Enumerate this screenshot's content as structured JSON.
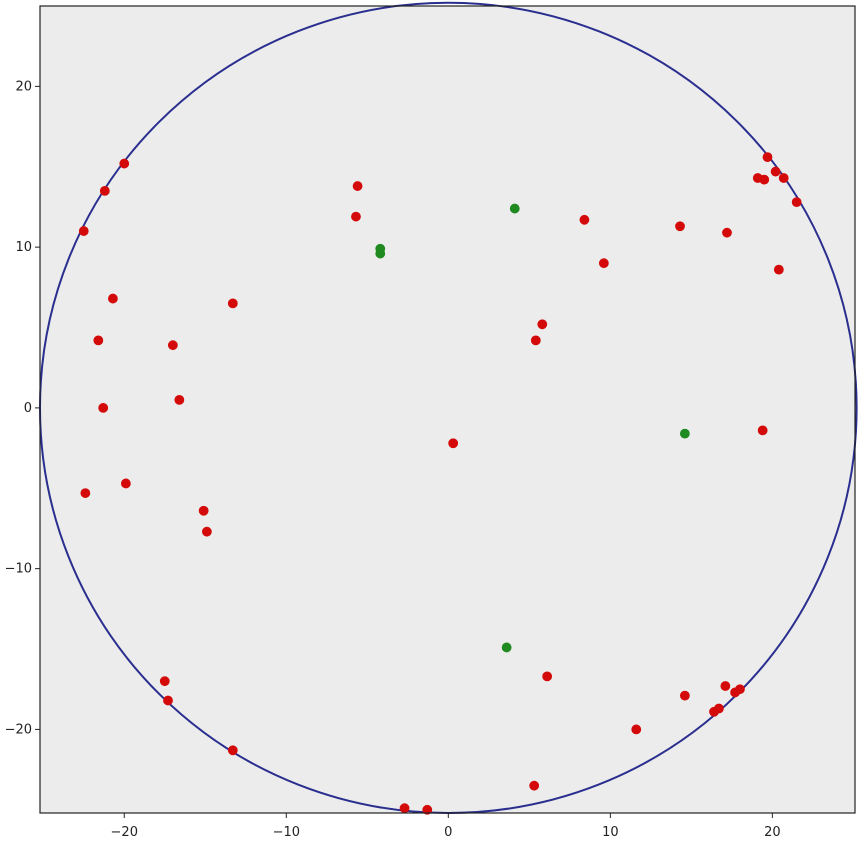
{
  "chart_data": {
    "type": "scatter",
    "title": "",
    "xlabel": "",
    "ylabel": "",
    "xlim": [
      -25.2,
      25.1
    ],
    "ylim": [
      -25.2,
      25.0
    ],
    "x_ticks": [
      -20,
      -10,
      0,
      10,
      20
    ],
    "y_ticks": [
      -20,
      -10,
      0,
      10,
      20
    ],
    "grid": false,
    "background_color": "#ececec",
    "boundary_circle": {
      "center": [
        0,
        0
      ],
      "radius": 25.2,
      "color": "#2a2f8f"
    },
    "series": [
      {
        "color": "#d40a0a",
        "points": [
          [
            -22.5,
            11.0
          ],
          [
            -21.2,
            13.5
          ],
          [
            -20.0,
            15.2
          ],
          [
            -20.7,
            6.8
          ],
          [
            -21.6,
            4.2
          ],
          [
            -17.0,
            3.9
          ],
          [
            -13.3,
            6.5
          ],
          [
            -21.3,
            0.0
          ],
          [
            -16.6,
            0.5
          ],
          [
            -22.4,
            -5.3
          ],
          [
            -19.9,
            -4.7
          ],
          [
            -15.1,
            -6.4
          ],
          [
            -14.9,
            -7.7
          ],
          [
            -17.5,
            -17.0
          ],
          [
            -17.3,
            -18.2
          ],
          [
            -13.3,
            -21.3
          ],
          [
            -5.6,
            13.8
          ],
          [
            -5.7,
            11.9
          ],
          [
            0.3,
            -2.2
          ],
          [
            5.4,
            4.2
          ],
          [
            5.8,
            5.2
          ],
          [
            8.4,
            11.7
          ],
          [
            9.6,
            9.0
          ],
          [
            14.3,
            11.3
          ],
          [
            17.2,
            10.9
          ],
          [
            19.1,
            14.3
          ],
          [
            19.5,
            14.2
          ],
          [
            19.7,
            15.6
          ],
          [
            20.2,
            14.7
          ],
          [
            20.7,
            14.3
          ],
          [
            21.5,
            12.8
          ],
          [
            20.4,
            8.6
          ],
          [
            19.4,
            -1.4
          ],
          [
            14.6,
            -17.9
          ],
          [
            11.6,
            -20.0
          ],
          [
            16.4,
            -18.9
          ],
          [
            16.7,
            -18.7
          ],
          [
            17.1,
            -17.3
          ],
          [
            17.7,
            -17.7
          ],
          [
            18.0,
            -17.5
          ],
          [
            6.1,
            -16.7
          ],
          [
            5.3,
            -23.5
          ],
          [
            -2.7,
            -24.9
          ],
          [
            -1.3,
            -25.0
          ]
        ]
      },
      {
        "color": "#1f8a1f",
        "points": [
          [
            4.1,
            12.4
          ],
          [
            -4.2,
            9.9
          ],
          [
            -4.2,
            9.6
          ],
          [
            14.6,
            -1.6
          ],
          [
            3.6,
            -14.9
          ]
        ]
      }
    ]
  }
}
